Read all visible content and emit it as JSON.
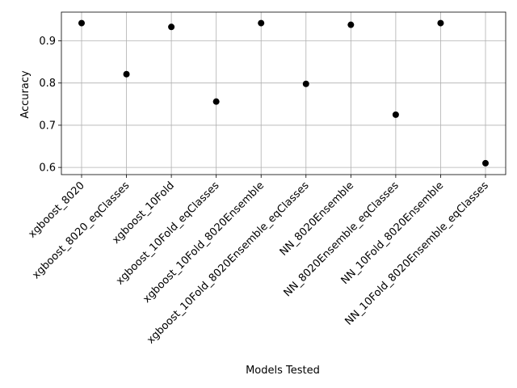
{
  "chart_data": {
    "type": "scatter",
    "xlabel": "Models Tested",
    "ylabel": "Accuracy",
    "categories": [
      "xgboost_8020",
      "xgboost_8020_eqClasses",
      "xgboost_10Fold",
      "xgboost_10Fold_eqClasses",
      "xgboost_10Fold_8020Ensemble",
      "xgboost_10Fold_8020Ensemble_eqClasses",
      "NN_8020Ensemble",
      "NN_8020Ensemble_eqClasses",
      "NN_10Fold_8020Ensemble",
      "NN_10Fold_8020Ensemble_eqClasses"
    ],
    "values": [
      0.942,
      0.821,
      0.933,
      0.756,
      0.942,
      0.798,
      0.938,
      0.725,
      0.942,
      0.61
    ],
    "ylim": [
      0.583,
      0.968
    ],
    "yticks": [
      0.6,
      0.7,
      0.8,
      0.9
    ],
    "grid": true,
    "marker_color": "#000000",
    "grid_color": "#b0b0b0"
  }
}
